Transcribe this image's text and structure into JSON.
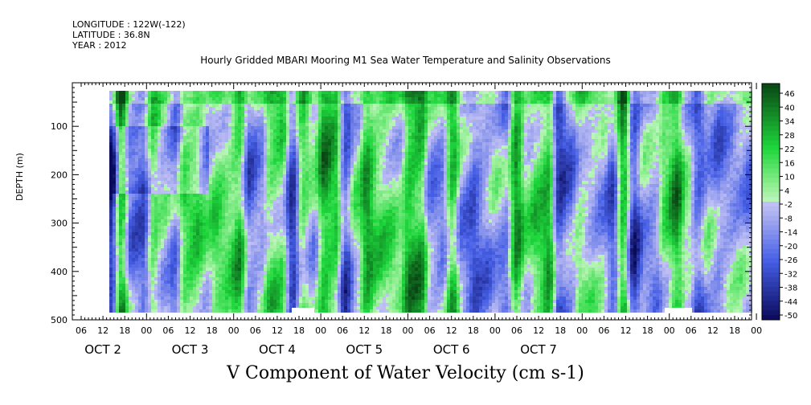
{
  "header": {
    "longitude": "LONGITUDE : 122W(-122)",
    "latitude": "LATITUDE : 36.8N",
    "year": "YEAR : 2012"
  },
  "chart_data": {
    "type": "heatmap",
    "title": "Hourly Gridded MBARI Mooring M1 Sea Water Temperature and Salinity Observations",
    "xlabel": "V Component of Water Velocity (cm s-1)",
    "ylabel": "DEPTH (m)",
    "ylim": [
      500,
      10
    ],
    "y_ticks": [
      100,
      200,
      300,
      400,
      500
    ],
    "x_hour_ticks": [
      "06",
      "12",
      "18",
      "00",
      "06",
      "12",
      "18",
      "00",
      "06",
      "12",
      "18",
      "00",
      "06",
      "12",
      "18",
      "00",
      "06",
      "12",
      "18",
      "00",
      "06",
      "12",
      "18",
      "00",
      "06",
      "12",
      "18",
      "00",
      "06",
      "12",
      "18",
      "00"
    ],
    "x_day_labels": [
      "OCT  2",
      "OCT  3",
      "OCT  4",
      "OCT  5",
      "OCT  6",
      "OCT  7"
    ],
    "colorbar_labels": [
      "46",
      "40",
      "34",
      "28",
      "22",
      "16",
      "10",
      "4",
      "-2",
      "-8",
      "-14",
      "-20",
      "-26",
      "-32",
      "-38",
      "-44",
      "-50"
    ],
    "color_range": [
      -50,
      50
    ],
    "colors": {
      "positive_strong": "#0a3d10",
      "positive_mid": "#16d43a",
      "positive_light": "#b4f2b4",
      "negative_light": "#b4b4f2",
      "negative_mid": "#4a62e6",
      "negative_strong": "#0a0a5a"
    }
  }
}
